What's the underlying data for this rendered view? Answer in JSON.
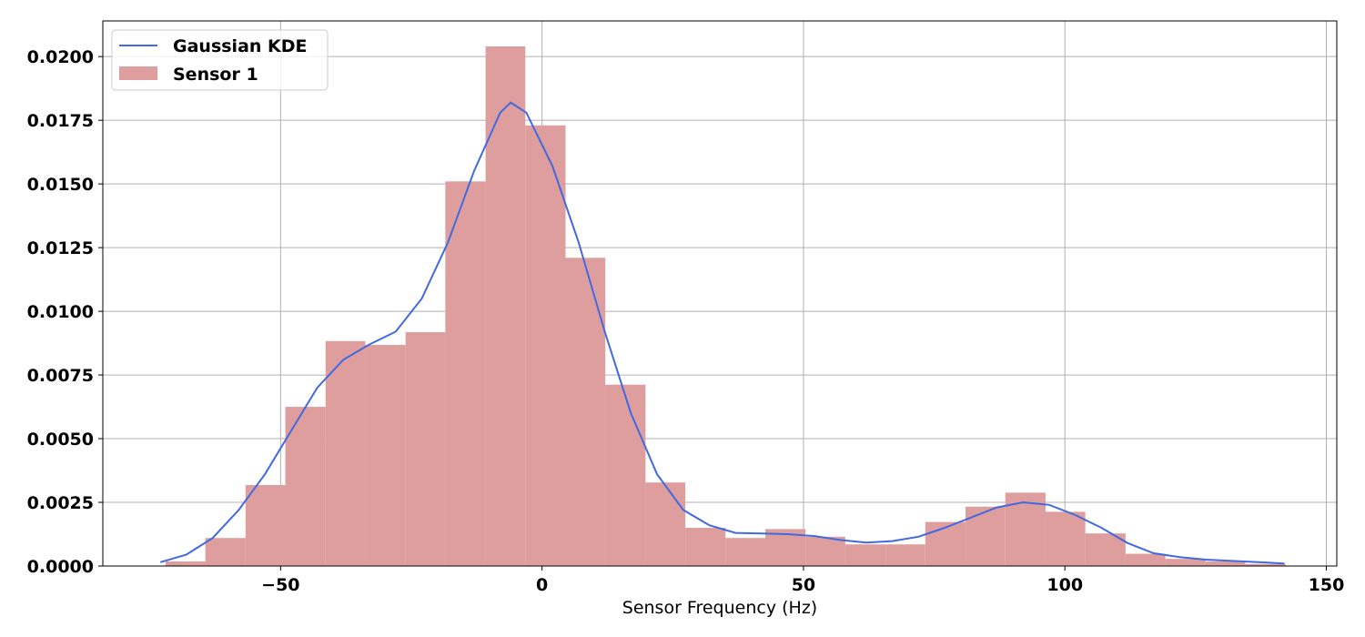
{
  "chart_data": {
    "type": "histogram",
    "title": "",
    "xlabel": "Sensor Frequency (Hz)",
    "ylabel": "",
    "xlim": [
      -84,
      152
    ],
    "ylim": [
      0,
      0.0214
    ],
    "x_ticks": [
      -50,
      0,
      50,
      100,
      150
    ],
    "x_tick_labels": [
      "−50",
      "0",
      "50",
      "100",
      "150"
    ],
    "y_ticks": [
      0,
      0.0025,
      0.005,
      0.0075,
      0.01,
      0.0125,
      0.015,
      0.0175,
      0.02
    ],
    "y_tick_labels": [
      "0.0000",
      "0.0025",
      "0.0050",
      "0.0075",
      "0.0100",
      "0.0125",
      "0.0150",
      "0.0175",
      "0.0200"
    ],
    "grid": true,
    "legend_position": "top-left",
    "histogram": {
      "name": "Sensor 1",
      "color": "#df9e9e",
      "bin_edges": [
        -72.0,
        -64.4,
        -56.7,
        -49.1,
        -41.4,
        -33.8,
        -26.1,
        -18.5,
        -10.8,
        -3.2,
        4.5,
        12.1,
        19.8,
        27.4,
        35.1,
        42.7,
        50.4,
        58.0,
        65.7,
        73.3,
        81.0,
        88.6,
        96.3,
        103.9,
        111.6,
        119.2,
        126.9,
        134.5,
        142.2
      ],
      "values": [
        0.00018,
        0.0011,
        0.00318,
        0.00625,
        0.00883,
        0.00868,
        0.00918,
        0.0151,
        0.0204,
        0.0173,
        0.0121,
        0.00712,
        0.00328,
        0.0015,
        0.0011,
        0.00145,
        0.00115,
        0.00085,
        0.00085,
        0.00173,
        0.00233,
        0.00288,
        0.00213,
        0.00128,
        0.00048,
        0.00028,
        0.00018,
        8e-05
      ]
    },
    "kde": {
      "name": "Gaussian KDE",
      "color": "#4169e1",
      "x": [
        -73,
        -68,
        -63,
        -58,
        -53,
        -48,
        -43,
        -38,
        -33,
        -28,
        -23,
        -18,
        -13,
        -8,
        -6,
        -3,
        2,
        7,
        12,
        17,
        22,
        27,
        32,
        37,
        42,
        47,
        52,
        57,
        62,
        67,
        72,
        77,
        82,
        87,
        92,
        97,
        102,
        107,
        112,
        117,
        122,
        127,
        132,
        137,
        142
      ],
      "y": [
        0.00015,
        0.00045,
        0.0011,
        0.0022,
        0.0036,
        0.0053,
        0.007,
        0.0081,
        0.0087,
        0.0092,
        0.0105,
        0.0127,
        0.0155,
        0.0178,
        0.0182,
        0.0178,
        0.0157,
        0.0127,
        0.0092,
        0.006,
        0.0036,
        0.0022,
        0.0016,
        0.0013,
        0.00128,
        0.00125,
        0.00118,
        0.00102,
        0.00092,
        0.00098,
        0.00115,
        0.0015,
        0.0019,
        0.0023,
        0.0025,
        0.0024,
        0.002,
        0.0015,
        0.0009,
        0.0005,
        0.00035,
        0.00025,
        0.0002,
        0.00015,
        0.0001
      ]
    }
  }
}
